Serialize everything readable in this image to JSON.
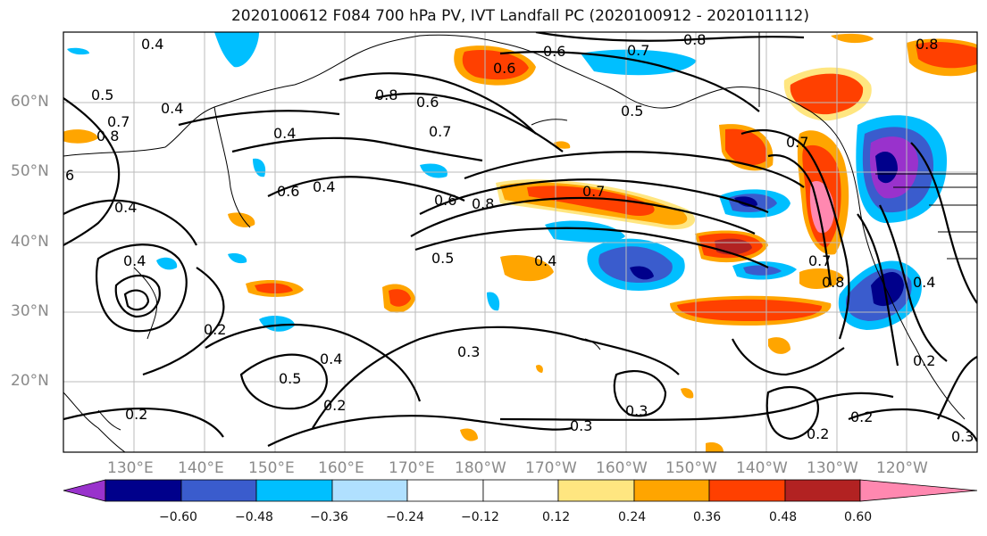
{
  "title": "2020100612 F084 700 hPa PV, IVT Landfall PC (2020100912 - 2020101112)",
  "lat_labels": [
    "60°N",
    "50°N",
    "40°N",
    "30°N",
    "20°N"
  ],
  "lon_labels": [
    "130°E",
    "140°E",
    "150°E",
    "160°E",
    "170°E",
    "180°W",
    "170°W",
    "160°W",
    "150°W",
    "140°W",
    "130°W",
    "120°W"
  ],
  "colorbar": {
    "colors": [
      "#9932cc",
      "#00008b",
      "#3a5ccd",
      "#00bfff",
      "#b0e0ff",
      "#ffffff",
      "#ffffff",
      "#ffe680",
      "#ffa500",
      "#ff4000",
      "#b22222",
      "#ff88b0"
    ],
    "tick_labels": [
      "−0.60",
      "−0.48",
      "−0.36",
      "−0.24",
      "−0.12",
      "0.12",
      "0.24",
      "0.36",
      "0.48",
      "0.60"
    ]
  },
  "contour_labels": [
    "0.4",
    "0.6",
    "0.7",
    "0.8",
    "0.8",
    "0.6",
    "0.5",
    "0.8",
    "0.7",
    "0.6",
    "0.4",
    "0.5",
    "0.8",
    "0.4",
    "0.4",
    "0.7",
    "0.6",
    "0.4",
    "6",
    "0.4",
    "0.6",
    "0.8",
    "0.7",
    "0.5",
    "0.4",
    "0.7",
    "0.7",
    "0.8",
    "0.4",
    "0.2",
    "0.5",
    "0.4",
    "0.3",
    "0.2",
    "0.3",
    "0.2",
    "0.2",
    "0.3",
    "0.2",
    "0.2",
    "0.3"
  ]
}
